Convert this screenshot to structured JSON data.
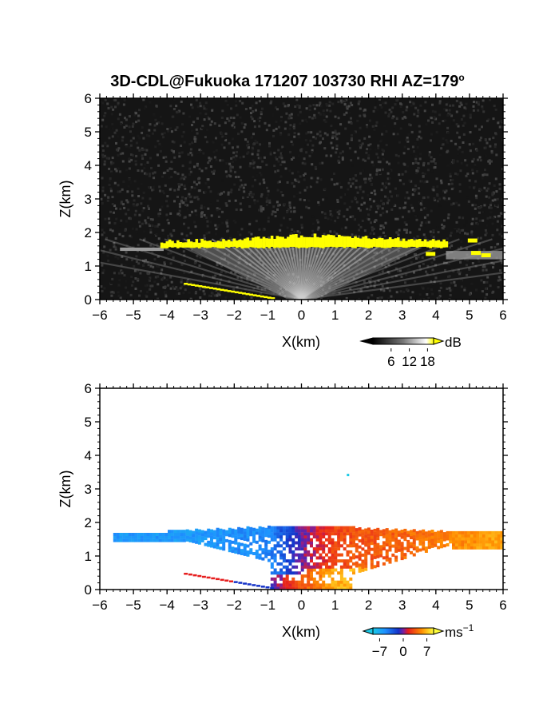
{
  "title_main": "3D-CDL@Fukuoka 171207 103730 RHI AZ=179",
  "title_degree": "o",
  "chart_data": [
    {
      "type": "heatmap",
      "name": "backscatter",
      "xlabel": "X(km)",
      "ylabel": "Z(km)",
      "xlim": [
        -6,
        6
      ],
      "ylim": [
        0,
        6
      ],
      "xticks": [
        -6,
        -5,
        -4,
        -3,
        -2,
        -1,
        0,
        1,
        2,
        3,
        4,
        5,
        6
      ],
      "yticks": [
        0,
        1,
        2,
        3,
        4,
        5,
        6
      ],
      "colorbar": {
        "unit": "dB",
        "ticks": [
          6,
          12,
          18
        ],
        "range": [
          0,
          20
        ],
        "colors": [
          "#000000",
          "#ffffff",
          "#ffff00"
        ]
      },
      "cloud_layer": {
        "base_km": 1.55,
        "top_km": 1.95,
        "x_from": -4.2,
        "x_to": 4.3,
        "color": "#ffff00"
      },
      "surface_return": {
        "x_from": -3.5,
        "x_to": -0.8,
        "z_from": 0.5,
        "z_to": 0.05,
        "color": "#ffff00"
      }
    },
    {
      "type": "heatmap",
      "name": "doppler_velocity",
      "xlabel": "X(km)",
      "ylabel": "Z(km)",
      "xlim": [
        -6,
        6
      ],
      "ylim": [
        0,
        6
      ],
      "xticks": [
        -6,
        -5,
        -4,
        -3,
        -2,
        -1,
        0,
        1,
        2,
        3,
        4,
        5,
        6
      ],
      "yticks": [
        0,
        1,
        2,
        3,
        4,
        5,
        6
      ],
      "colorbar": {
        "unit": "ms",
        "unit_exp": "−1",
        "ticks": [
          -7,
          0,
          7
        ],
        "tick_labels": [
          "−7",
          "0",
          "7"
        ],
        "range": [
          -9,
          9
        ]
      },
      "approx_velocity_by_x": [
        {
          "x": -5.5,
          "v": -6
        },
        {
          "x": -3,
          "v": -6
        },
        {
          "x": -1,
          "v": -5
        },
        {
          "x": 0,
          "v": 0
        },
        {
          "x": 1,
          "v": 3
        },
        {
          "x": 3,
          "v": 4
        },
        {
          "x": 5.5,
          "v": 6
        }
      ]
    }
  ]
}
